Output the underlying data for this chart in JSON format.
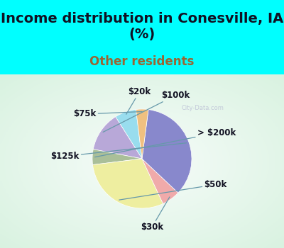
{
  "title": "Income distribution in Conesville, IA\n(%)",
  "subtitle": "Other residents",
  "background_color": "#00FFFF",
  "chart_bg_color": "#d8ede0",
  "labels": [
    "$20k",
    "$100k",
    "> $200k",
    "$50k",
    "$30k",
    "$125k",
    "$75k"
  ],
  "sizes": [
    7,
    13,
    5,
    30,
    6,
    35,
    4
  ],
  "colors": [
    "#99DDEE",
    "#B8A8D8",
    "#AABF99",
    "#EEEEA0",
    "#F0AAAA",
    "#8888CC",
    "#F0C080"
  ],
  "title_fontsize": 14,
  "subtitle_fontsize": 12,
  "subtitle_color": "#996633",
  "startangle": 97,
  "label_fontsize": 8.5
}
